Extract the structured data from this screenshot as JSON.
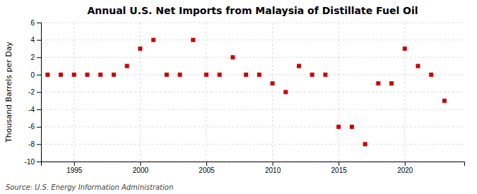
{
  "chart_data": {
    "type": "scatter",
    "title": "Annual U.S. Net Imports from Malaysia of Distillate Fuel Oil",
    "ylabel": "Thousand Barrels per Day",
    "source": "Source: U.S. Energy Information Administration",
    "x": [
      1993,
      1994,
      1995,
      1996,
      1997,
      1998,
      1999,
      2000,
      2001,
      2002,
      2003,
      2004,
      2005,
      2006,
      2007,
      2008,
      2009,
      2010,
      2011,
      2012,
      2013,
      2014,
      2015,
      2016,
      2017,
      2018,
      2019,
      2020,
      2021,
      2022,
      2023
    ],
    "values": [
      0,
      0,
      0,
      0,
      0,
      0,
      1,
      3,
      4,
      0,
      0,
      4,
      0,
      0,
      2,
      0,
      0,
      -1,
      -2,
      1,
      0,
      0,
      -6,
      -6,
      -8,
      -1,
      -1,
      3,
      1,
      0,
      -3
    ],
    "color": "#cc0000",
    "marker": "square",
    "xlim": [
      1992.5,
      2024.5
    ],
    "xticks": [
      1995,
      2000,
      2005,
      2010,
      2015,
      2020
    ],
    "ylim": [
      -10,
      6
    ],
    "yticks": [
      -10,
      -8,
      -6,
      -4,
      -2,
      0,
      2,
      4,
      6
    ],
    "grid": true
  }
}
